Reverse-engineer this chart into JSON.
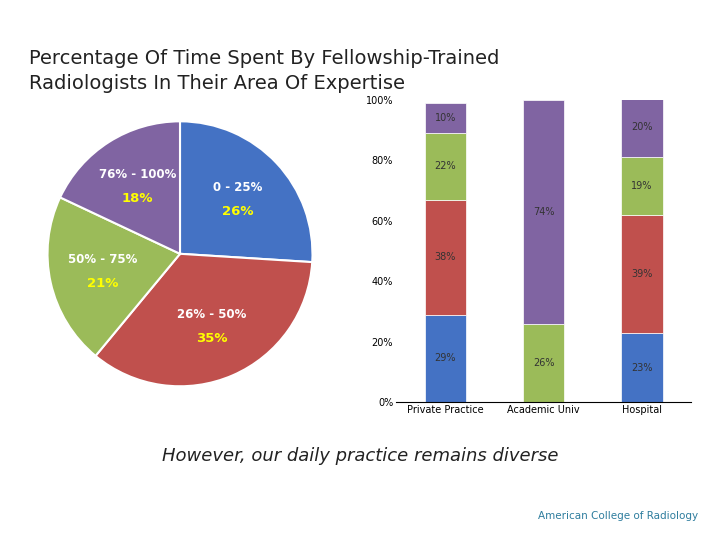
{
  "title": "Percentage Of Time Spent By Fellowship-Trained\nRadiologists In Their Area Of Expertise",
  "subtitle": "However, our daily practice remains diverse",
  "footer": "American College of Radiology",
  "background_color": "#ffffff",
  "top_bar_color": "#1a5276",
  "stripe_color": "#c8d96f",
  "left_bar_color": "#1a5276",
  "bottom_line_color": "#c8b560",
  "pie_values": [
    26,
    35,
    21,
    18
  ],
  "pie_colors": [
    "#4472c4",
    "#c0504d",
    "#9bbb59",
    "#8064a2"
  ],
  "pie_outer_labels": [
    "0 - 25%",
    "26% - 50%",
    "50% - 75%",
    "76% - 100%"
  ],
  "pie_pct_labels": [
    "26%",
    "35%",
    "21%",
    "18%"
  ],
  "bar_categories": [
    "Private Practice",
    "Academic Univ",
    "Hospital"
  ],
  "bar_segments": {
    "blue": [
      29,
      0,
      23
    ],
    "red": [
      38,
      0,
      39
    ],
    "green": [
      22,
      26,
      19
    ],
    "purple": [
      10,
      74,
      20
    ]
  },
  "bar_colors": {
    "blue": "#4472c4",
    "red": "#c0504d",
    "green": "#9bbb59",
    "purple": "#8064a2"
  },
  "bar_segment_labels": {
    "blue": [
      "29%",
      "",
      "23%"
    ],
    "red": [
      "38%",
      "",
      "39%"
    ],
    "green": [
      "22%",
      "26%",
      "19%"
    ],
    "purple": [
      "10%",
      "74%",
      "20%"
    ]
  },
  "bar_ylim": [
    0,
    100
  ],
  "bar_yticks": [
    0,
    20,
    40,
    60,
    80,
    100
  ],
  "bar_yticklabels": [
    "0%",
    "20%",
    "40%",
    "60%",
    "80%",
    "100%"
  ]
}
